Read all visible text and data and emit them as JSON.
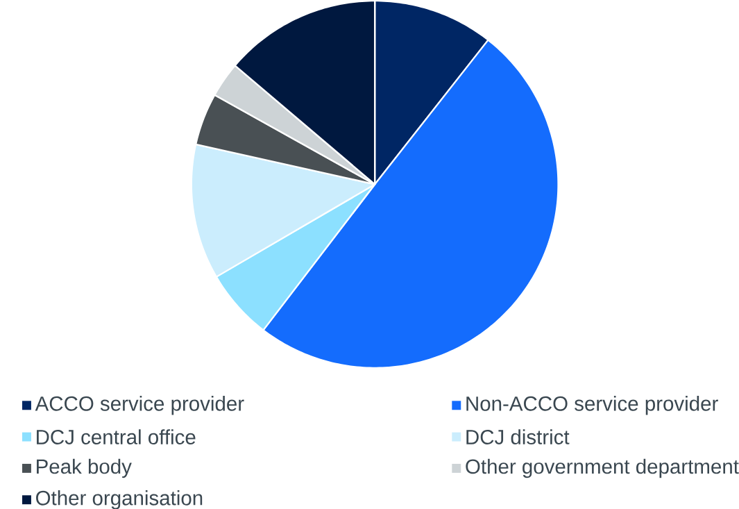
{
  "chart_data": {
    "type": "pie",
    "categories": [
      "ACCO service provider",
      "Non-ACCO service provider",
      "DCJ central office",
      "DCJ district",
      "Peak body",
      "Other government department",
      "Other organisation"
    ],
    "values": [
      10.6,
      49.8,
      6.2,
      11.9,
      4.6,
      3.1,
      13.8
    ],
    "colors": [
      "#002664",
      "#146cfd",
      "#8ce0ff",
      "#cbedfd",
      "#495054",
      "#cdd3d6",
      "#00183f"
    ],
    "legend": "bottom"
  }
}
